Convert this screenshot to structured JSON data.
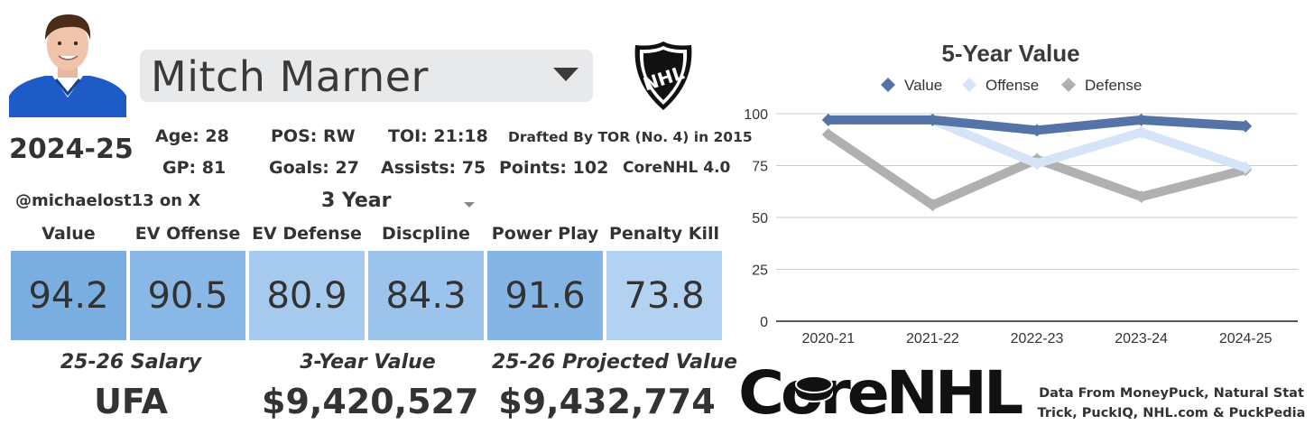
{
  "player": {
    "name": "Mitch Marner",
    "season": "2024-25",
    "photo_icon": "player-headshot"
  },
  "league_logo": {
    "icon": "nhl-shield-logo",
    "text": "NHL"
  },
  "bio": {
    "age": "Age: 28",
    "pos": "POS: RW",
    "toi": "TOI: 21:18",
    "drafted": "Drafted By TOR (No. 4) in 2015",
    "gp": "GP: 81",
    "goals": "Goals: 27",
    "assists": "Assists: 75",
    "points": "Points: 102",
    "version": "CoreNHL 4.0"
  },
  "handle": "@michaelost13 on X",
  "period_select": {
    "value": "3 Year"
  },
  "categories": [
    {
      "label": "Value",
      "score": "94.2",
      "color": "#7aaee0"
    },
    {
      "label": "EV Offense",
      "score": "90.5",
      "color": "#8ab8e6"
    },
    {
      "label": "EV Defense",
      "score": "80.9",
      "color": "#a6c9ee"
    },
    {
      "label": "Discpline",
      "score": "84.3",
      "color": "#9cc3ec"
    },
    {
      "label": "Power Play",
      "score": "91.6",
      "color": "#85b5e4"
    },
    {
      "label": "Penalty Kill",
      "score": "73.8",
      "color": "#b3d1f1"
    }
  ],
  "footer": {
    "salary_label": "25-26 Salary",
    "salary_value": "UFA",
    "value3_label": "3-Year Value",
    "value3_value": "$9,420,527",
    "projected_label": "25-26 Projected Value",
    "projected_value": "$9,432,774"
  },
  "brand": {
    "logo_text": "CoreNHL",
    "logo_icon": "hockey-puck-icon"
  },
  "data_source": {
    "line1": "Data From MoneyPuck, Natural Stat",
    "line2": "Trick, PuckIQ, NHL.com & PuckPedia"
  },
  "chart_data": {
    "type": "line",
    "title": "5-Year Value",
    "categories": [
      "2020-21",
      "2021-22",
      "2022-23",
      "2023-24",
      "2024-25"
    ],
    "ylim": [
      0,
      100
    ],
    "yticks": [
      0,
      25,
      50,
      75,
      100
    ],
    "grid": true,
    "legend_position": "top",
    "series": [
      {
        "name": "Value",
        "values": [
          97,
          97,
          92,
          97,
          94
        ],
        "color": "#5473a6"
      },
      {
        "name": "Offense",
        "values": [
          97,
          97,
          76,
          91,
          74
        ],
        "color": "#d6e4f7"
      },
      {
        "name": "Defense",
        "values": [
          90,
          56,
          78,
          60,
          73
        ],
        "color": "#b0b0b0"
      }
    ]
  }
}
